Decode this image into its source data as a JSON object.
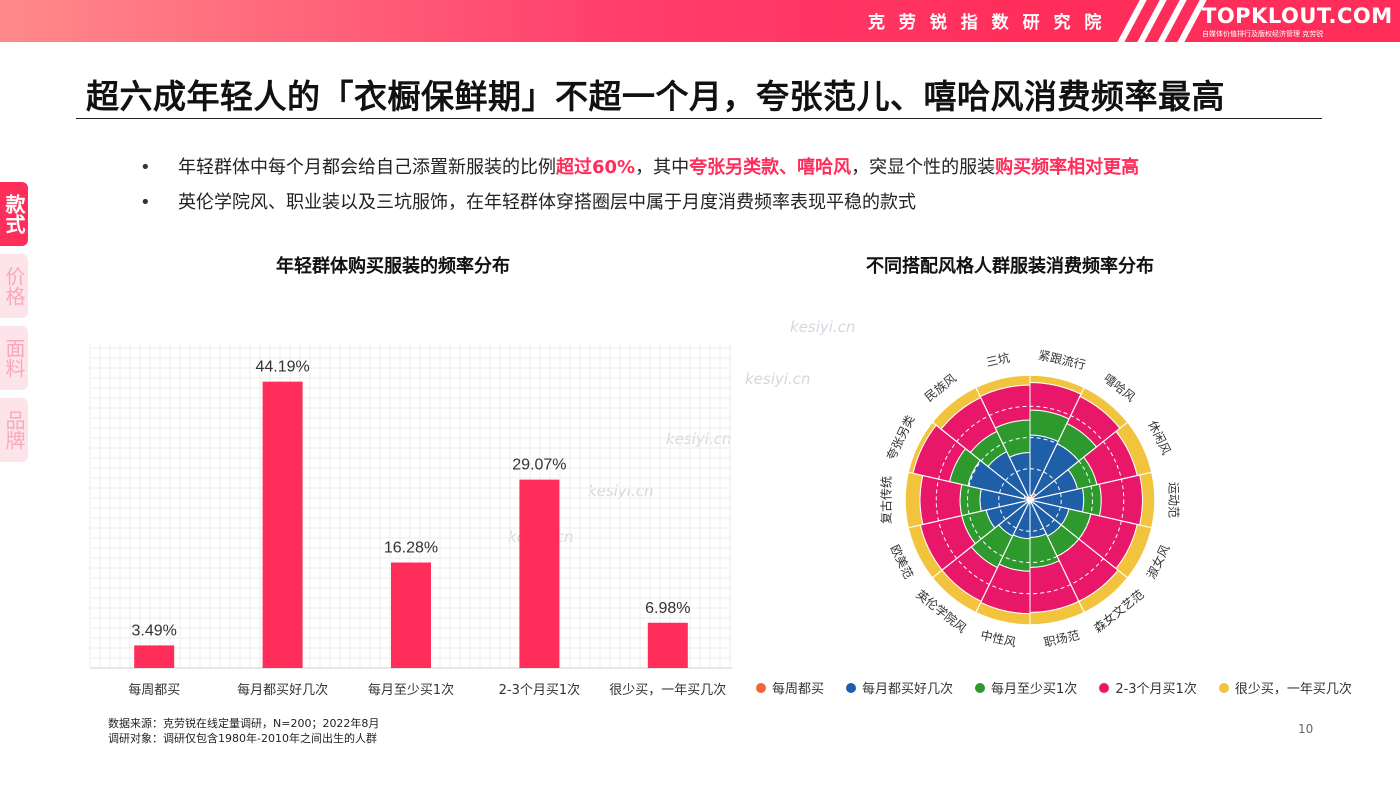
{
  "header": {
    "institute": "克 劳 锐 指 数 研 究 院",
    "logo_main": "TOPKLOUT.COM",
    "logo_sub": "自媒体价值排行及版权经济管理  克劳锐"
  },
  "title": "超六成年轻人的「衣橱保鲜期」不超一个月，夸张范儿、嘻哈风消费频率最高",
  "bullets": [
    {
      "parts": [
        {
          "text": "年轻群体中每个月都会给自己添置新服装的比例",
          "highlight": false
        },
        {
          "text": "超过60%",
          "highlight": true
        },
        {
          "text": "，其中",
          "highlight": false
        },
        {
          "text": "夸张另类款、嘻哈风",
          "highlight": true
        },
        {
          "text": "，突显个性的服装",
          "highlight": false
        },
        {
          "text": "购买频率相对更高",
          "highlight": true
        }
      ]
    },
    {
      "parts": [
        {
          "text": "英伦学院风、职业装以及三坑服饰，在年轻群体穿搭圈层中属于月度消费频率表现平稳的款式",
          "highlight": false
        }
      ]
    }
  ],
  "side_tabs": [
    {
      "label": "款式",
      "active": true
    },
    {
      "label": "价格",
      "active": false
    },
    {
      "label": "面料",
      "active": false
    },
    {
      "label": "品牌",
      "active": false
    }
  ],
  "colors": {
    "accent": "#ff2d5a",
    "bar": "#ff2d5a",
    "weekly": "#f2673a",
    "monthly_multi": "#1f5fa8",
    "monthly_once": "#2e9a2e",
    "two_three_month": "#e8176a",
    "rare": "#f2c43d"
  },
  "chart_data": [
    {
      "type": "bar",
      "title": "年轻群体购买服装的频率分布",
      "categories": [
        "每周都买",
        "每月都买好几次",
        "每月至少买1次",
        "2-3个月买1次",
        "很少买，一年买几次"
      ],
      "values": [
        3.49,
        44.19,
        16.28,
        29.07,
        6.98
      ],
      "value_labels": [
        "3.49%",
        "44.19%",
        "16.28%",
        "29.07%",
        "6.98%"
      ],
      "xlabel": "",
      "ylabel": "",
      "ylim": [
        0,
        50
      ],
      "grid": true
    },
    {
      "type": "polar_stacked_bar",
      "title": "不同搭配风格人群服装消费频率分布",
      "categories": [
        "紧跟流行",
        "嘻哈风",
        "休闲风",
        "运动范",
        "淑女风",
        "森女文艺范",
        "职场范",
        "中性风",
        "英伦学院风",
        "欧美范",
        "复古传统",
        "夸张另类",
        "民族风",
        "三坑"
      ],
      "series": [
        {
          "name": "每周都买",
          "values": [
            4,
            6,
            3,
            3,
            2,
            2,
            2,
            3,
            2,
            2,
            2,
            5,
            3,
            2
          ]
        },
        {
          "name": "每月都买好几次",
          "values": [
            48,
            44,
            36,
            40,
            30,
            30,
            28,
            28,
            30,
            34,
            38,
            46,
            40,
            36
          ]
        },
        {
          "name": "每月至少买1次",
          "values": [
            20,
            18,
            16,
            14,
            18,
            18,
            24,
            26,
            28,
            20,
            16,
            15,
            18,
            26
          ]
        },
        {
          "name": "2-3个月买1次",
          "values": [
            22,
            24,
            33,
            33,
            38,
            40,
            36,
            34,
            30,
            34,
            32,
            30,
            30,
            28
          ]
        },
        {
          "name": "很少买，一年买几次",
          "values": [
            6,
            8,
            12,
            10,
            12,
            10,
            10,
            9,
            10,
            10,
            12,
            4,
            9,
            8
          ]
        }
      ],
      "legend": "bottom",
      "max": 100
    }
  ],
  "legend_labels": [
    "每周都买",
    "每月都买好几次",
    "每月至少买1次",
    "2-3个月买1次",
    "很少买，一年买几次"
  ],
  "source": {
    "line1": "数据来源：克劳锐在线定量调研，N=200；2022年8月",
    "line2": "调研对象：调研仅包含1980年-2010年之间出生的人群"
  },
  "page_number": "10",
  "watermark": "kesiyi.cn"
}
